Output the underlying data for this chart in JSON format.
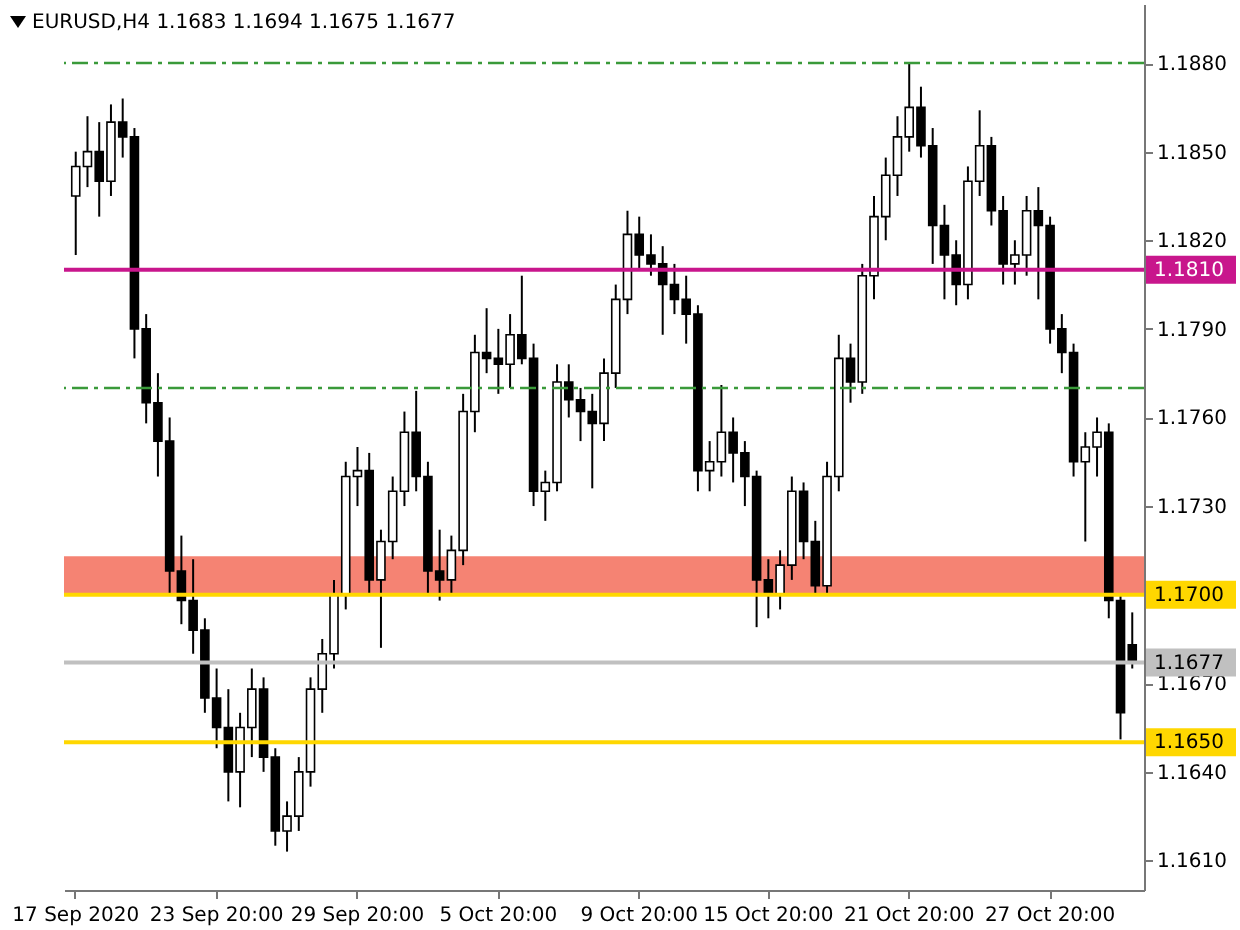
{
  "chart_data": {
    "type": "candlestick",
    "title": "EURUSD,H4  1.1683 1.1694 1.1675 1.1677",
    "color": "#000000",
    "categories": [
      "17 Sep 2020",
      null,
      null,
      null,
      null,
      null,
      null,
      null,
      null,
      null,
      null,
      null,
      "23 Sep 20:00",
      null,
      null,
      null,
      null,
      null,
      null,
      null,
      null,
      null,
      null,
      null,
      "29 Sep 20:00",
      null,
      null,
      null,
      null,
      null,
      null,
      null,
      null,
      null,
      null,
      null,
      "5 Oct 20:00",
      null,
      null,
      null,
      null,
      null,
      null,
      null,
      null,
      null,
      null,
      null,
      "9 Oct 20:00",
      null,
      null,
      null,
      null,
      null,
      null,
      null,
      null,
      null,
      null,
      "15 Oct 20:00",
      null,
      null,
      null,
      null,
      null,
      null,
      null,
      null,
      null,
      null,
      null,
      "21 Oct 20:00",
      null,
      null,
      null,
      null,
      null,
      null,
      null,
      null,
      null,
      null,
      null,
      "27 Oct 20:00",
      null,
      null,
      null,
      null,
      null,
      null,
      null
    ],
    "ohlc": [
      [
        1.1835,
        1.185,
        1.1815,
        1.1845
      ],
      [
        1.1845,
        1.1862,
        1.1838,
        1.185
      ],
      [
        1.185,
        1.186,
        1.1828,
        1.184
      ],
      [
        1.184,
        1.1866,
        1.1835,
        1.186
      ],
      [
        1.186,
        1.1868,
        1.1848,
        1.1855
      ],
      [
        1.1855,
        1.1858,
        1.178,
        1.179
      ],
      [
        1.179,
        1.1795,
        1.1758,
        1.1765
      ],
      [
        1.1765,
        1.1775,
        1.174,
        1.1752
      ],
      [
        1.1752,
        1.176,
        1.17,
        1.1708
      ],
      [
        1.1708,
        1.172,
        1.169,
        1.1698
      ],
      [
        1.1698,
        1.1712,
        1.168,
        1.1688
      ],
      [
        1.1688,
        1.1692,
        1.166,
        1.1665
      ],
      [
        1.1665,
        1.1675,
        1.1648,
        1.1655
      ],
      [
        1.1655,
        1.1668,
        1.163,
        1.164
      ],
      [
        1.164,
        1.166,
        1.1628,
        1.1655
      ],
      [
        1.1655,
        1.1675,
        1.1645,
        1.1668
      ],
      [
        1.1668,
        1.1672,
        1.164,
        1.1645
      ],
      [
        1.1645,
        1.1648,
        1.1615,
        1.162
      ],
      [
        1.162,
        1.163,
        1.1613,
        1.1625
      ],
      [
        1.1625,
        1.1645,
        1.162,
        1.164
      ],
      [
        1.164,
        1.1672,
        1.1635,
        1.1668
      ],
      [
        1.1668,
        1.1685,
        1.166,
        1.168
      ],
      [
        1.168,
        1.1705,
        1.1675,
        1.17
      ],
      [
        1.17,
        1.1745,
        1.1695,
        1.174
      ],
      [
        1.174,
        1.175,
        1.173,
        1.1742
      ],
      [
        1.1742,
        1.1748,
        1.17,
        1.1705
      ],
      [
        1.1705,
        1.1722,
        1.1682,
        1.1718
      ],
      [
        1.1718,
        1.174,
        1.1712,
        1.1735
      ],
      [
        1.1735,
        1.1762,
        1.173,
        1.1755
      ],
      [
        1.1755,
        1.1769,
        1.1735,
        1.174
      ],
      [
        1.174,
        1.1745,
        1.17,
        1.1708
      ],
      [
        1.1708,
        1.1722,
        1.1698,
        1.1705
      ],
      [
        1.1705,
        1.172,
        1.17,
        1.1715
      ],
      [
        1.1715,
        1.1768,
        1.171,
        1.1762
      ],
      [
        1.1762,
        1.1788,
        1.1755,
        1.1782
      ],
      [
        1.1782,
        1.1797,
        1.1775,
        1.178
      ],
      [
        1.178,
        1.179,
        1.1768,
        1.1778
      ],
      [
        1.1778,
        1.1795,
        1.177,
        1.1788
      ],
      [
        1.1788,
        1.1808,
        1.1778,
        1.178
      ],
      [
        1.178,
        1.1785,
        1.173,
        1.1735
      ],
      [
        1.1735,
        1.1742,
        1.1725,
        1.1738
      ],
      [
        1.1738,
        1.1778,
        1.1735,
        1.1772
      ],
      [
        1.1772,
        1.1778,
        1.176,
        1.1766
      ],
      [
        1.1766,
        1.177,
        1.1752,
        1.1762
      ],
      [
        1.1762,
        1.1768,
        1.1736,
        1.1758
      ],
      [
        1.1758,
        1.178,
        1.1752,
        1.1775
      ],
      [
        1.1775,
        1.1805,
        1.177,
        1.18
      ],
      [
        1.18,
        1.183,
        1.1795,
        1.1822
      ],
      [
        1.1822,
        1.1828,
        1.181,
        1.1815
      ],
      [
        1.1815,
        1.1822,
        1.1808,
        1.1812
      ],
      [
        1.1812,
        1.1818,
        1.1788,
        1.1805
      ],
      [
        1.1805,
        1.1812,
        1.1795,
        1.18
      ],
      [
        1.18,
        1.1808,
        1.1785,
        1.1795
      ],
      [
        1.1795,
        1.1798,
        1.1735,
        1.1742
      ],
      [
        1.1742,
        1.1752,
        1.1735,
        1.1745
      ],
      [
        1.1745,
        1.1771,
        1.174,
        1.1755
      ],
      [
        1.1755,
        1.176,
        1.1738,
        1.1748
      ],
      [
        1.1748,
        1.1752,
        1.173,
        1.174
      ],
      [
        1.174,
        1.1742,
        1.1689,
        1.1705
      ],
      [
        1.1705,
        1.1712,
        1.1692,
        1.17
      ],
      [
        1.17,
        1.1715,
        1.1695,
        1.171
      ],
      [
        1.171,
        1.174,
        1.1705,
        1.1735
      ],
      [
        1.1735,
        1.1738,
        1.1712,
        1.1718
      ],
      [
        1.1718,
        1.1725,
        1.17,
        1.1703
      ],
      [
        1.1703,
        1.1745,
        1.17,
        1.174
      ],
      [
        1.174,
        1.1788,
        1.1735,
        1.178
      ],
      [
        1.178,
        1.1785,
        1.1765,
        1.1772
      ],
      [
        1.1772,
        1.1812,
        1.1768,
        1.1808
      ],
      [
        1.1808,
        1.1835,
        1.18,
        1.1828
      ],
      [
        1.1828,
        1.1848,
        1.182,
        1.1842
      ],
      [
        1.1842,
        1.1862,
        1.1835,
        1.1855
      ],
      [
        1.1855,
        1.188,
        1.185,
        1.1865
      ],
      [
        1.1865,
        1.1872,
        1.1848,
        1.1852
      ],
      [
        1.1852,
        1.1858,
        1.1812,
        1.1825
      ],
      [
        1.1825,
        1.1832,
        1.18,
        1.1815
      ],
      [
        1.1815,
        1.182,
        1.1798,
        1.1805
      ],
      [
        1.1805,
        1.1845,
        1.18,
        1.184
      ],
      [
        1.184,
        1.1864,
        1.1835,
        1.1852
      ],
      [
        1.1852,
        1.1855,
        1.1825,
        1.183
      ],
      [
        1.183,
        1.1835,
        1.1805,
        1.1812
      ],
      [
        1.1812,
        1.182,
        1.1805,
        1.1815
      ],
      [
        1.1815,
        1.1835,
        1.1808,
        1.183
      ],
      [
        1.183,
        1.1838,
        1.18,
        1.1825
      ],
      [
        1.1825,
        1.1828,
        1.1785,
        1.179
      ],
      [
        1.179,
        1.1795,
        1.1775,
        1.1782
      ],
      [
        1.1782,
        1.1785,
        1.174,
        1.1745
      ],
      [
        1.1745,
        1.1755,
        1.1718,
        1.175
      ],
      [
        1.175,
        1.176,
        1.174,
        1.1755
      ],
      [
        1.1755,
        1.1758,
        1.1692,
        1.1698
      ],
      [
        1.1698,
        1.17,
        1.1651,
        1.166
      ],
      [
        1.1683,
        1.1694,
        1.1675,
        1.1677
      ]
    ],
    "ylim": [
      1.16,
      1.19
    ],
    "yticks": [
      {
        "value": 1.188,
        "label": "1.1880"
      },
      {
        "value": 1.185,
        "label": "1.1850"
      },
      {
        "value": 1.182,
        "label": "1.1820"
      },
      {
        "value": 1.179,
        "label": "1.1790"
      },
      {
        "value": 1.176,
        "label": "1.1760"
      },
      {
        "value": 1.173,
        "label": "1.1730"
      },
      {
        "value": 1.167,
        "label": "1.1670"
      },
      {
        "value": 1.164,
        "label": "1.1640"
      },
      {
        "value": 1.161,
        "label": "1.1610"
      }
    ],
    "ref_lines": [
      {
        "axis": "y",
        "value": 1.181,
        "label": "1.1810",
        "color": "#c8168c"
      },
      {
        "axis": "y",
        "value": 1.17,
        "label": "1.1700",
        "color": "#ffd700"
      },
      {
        "axis": "y",
        "value": 1.165,
        "label": "1.1650",
        "color": "#ffd700"
      },
      {
        "axis": "y",
        "value": 1.1677,
        "label": "1.1677",
        "color": "#c0c0c0"
      },
      {
        "axis": "y",
        "value": 1.188,
        "color": "#3a9a3a",
        "line_style": "dashed"
      },
      {
        "axis": "y",
        "value": 1.177,
        "color": "#3a9a3a",
        "line_style": "dashed"
      }
    ],
    "bands": [
      {
        "axis": "y",
        "from": 1.17,
        "to": 1.1713,
        "color": "#f47c6c"
      }
    ],
    "grid": false
  }
}
